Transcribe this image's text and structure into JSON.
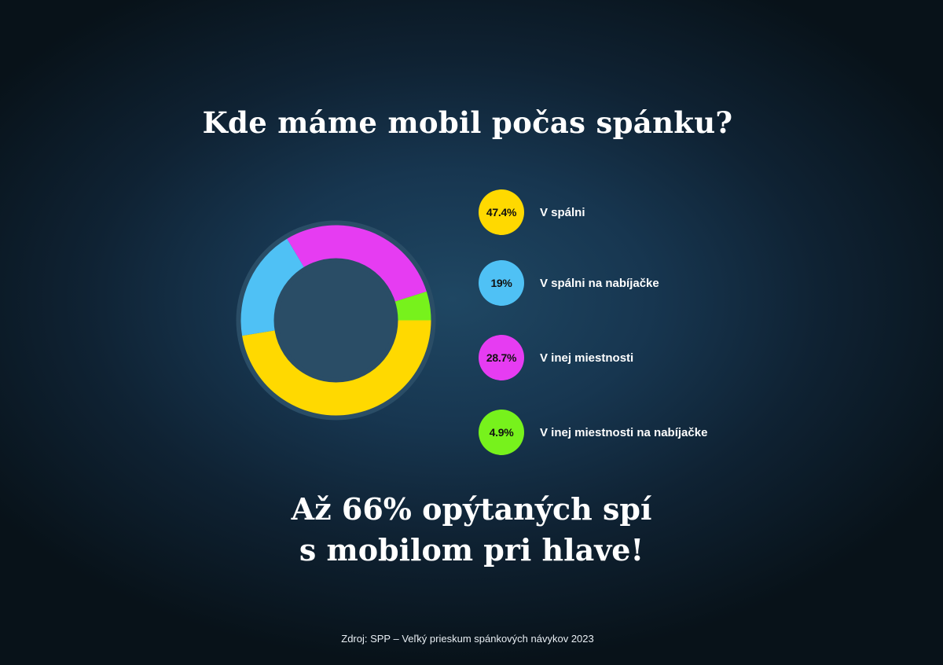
{
  "title": "Kde máme mobil počas spánku?",
  "chart_data": {
    "type": "pie",
    "title": "Kde máme mobil počas spánku?",
    "categories": [
      "V spálni",
      "V spálni na nabíjačke",
      "V inej miestnosti",
      "V inej miestnosti na nabíjačke"
    ],
    "values": [
      47.4,
      19,
      28.7,
      4.9
    ],
    "value_labels": [
      "47.4%",
      "19%",
      "28.7%",
      "4.9%"
    ],
    "colors": [
      "#ffd900",
      "#4fc1f5",
      "#e63cf2",
      "#77f21c"
    ],
    "donut": true,
    "legend_placement": "right"
  },
  "headline": {
    "line1": "Až 66% opýtaných spí",
    "line2": "s mobilom pri hlave!"
  },
  "source": "Zdroj: SPP – Veľký prieskum spánkových návykov 2023"
}
